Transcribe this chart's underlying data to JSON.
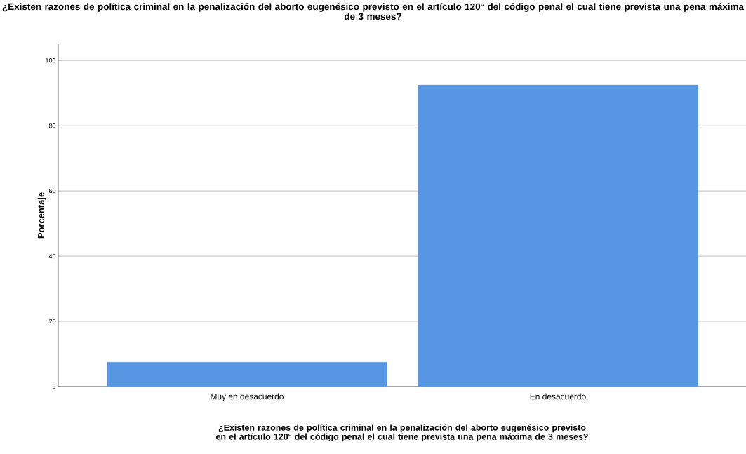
{
  "chart_data": {
    "type": "bar",
    "title": "¿Existen razones de política criminal en la penalización del aborto eugenésico previsto en el artículo 120° del código penal el cual tiene prevista una pena máxima de 3 meses?",
    "xlabel": "¿Existen razones de política criminal en la penalización del aborto eugenésico previsto en el artículo 120° del código penal el cual tiene prevista una pena máxima de 3 meses?",
    "ylabel": "Porcentaje",
    "categories": [
      "Muy en desacuerdo",
      "En desacuerdo"
    ],
    "values": [
      7.5,
      92.5
    ],
    "color": "#5696e3",
    "ylim": [
      0,
      105
    ],
    "yticks": [
      0,
      20,
      40,
      60,
      80,
      100
    ],
    "grid": "y"
  }
}
